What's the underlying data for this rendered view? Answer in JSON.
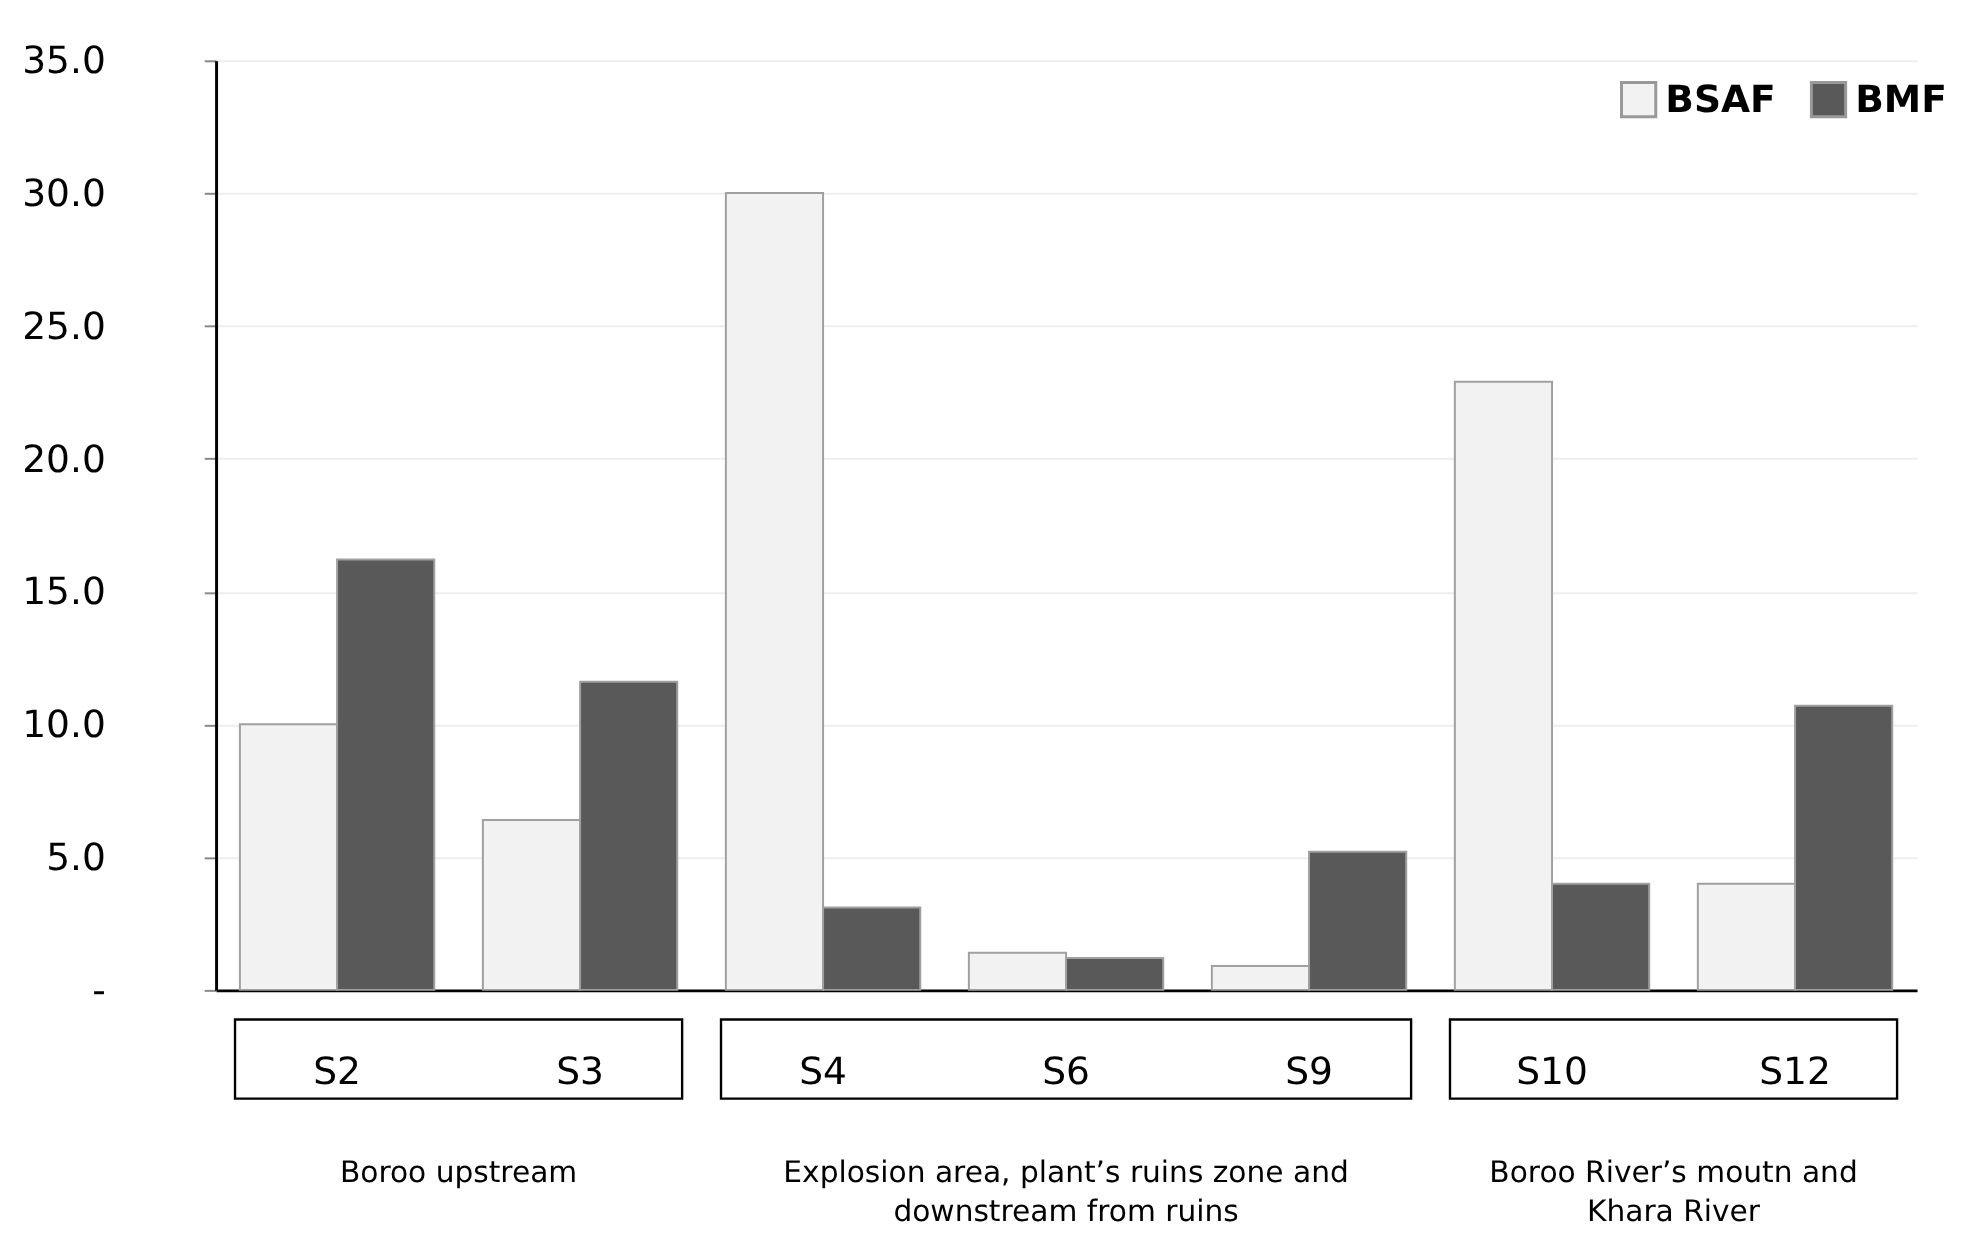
{
  "chart_data": {
    "type": "bar",
    "categories": [
      "S2",
      "S3",
      "S4",
      "S6",
      "S9",
      "S10",
      "S12"
    ],
    "series": [
      {
        "name": "BSAF",
        "color": "#f2f2f2",
        "values": [
          10.0,
          6.4,
          30.0,
          1.4,
          0.9,
          22.9,
          4.0
        ]
      },
      {
        "name": "BMF",
        "color": "#595959",
        "values": [
          16.2,
          11.6,
          3.1,
          1.2,
          5.2,
          4.0,
          10.7
        ]
      }
    ],
    "ylim": [
      0,
      35
    ],
    "yticks": [
      {
        "value": 0,
        "label": "-"
      },
      {
        "value": 5,
        "label": "5.0"
      },
      {
        "value": 10,
        "label": "10.0"
      },
      {
        "value": 15,
        "label": "15.0"
      },
      {
        "value": 20,
        "label": "20.0"
      },
      {
        "value": 25,
        "label": "25.0"
      },
      {
        "value": 30,
        "label": "30.0"
      },
      {
        "value": 35,
        "label": "35.0"
      }
    ],
    "grid": "y",
    "legend": "top right",
    "annotations": [
      "Boroo upstream",
      "Explosion area, plant’s ruins zone and\ndownstream from ruins",
      "Boroo River’s moutn and\nKhara River"
    ]
  }
}
